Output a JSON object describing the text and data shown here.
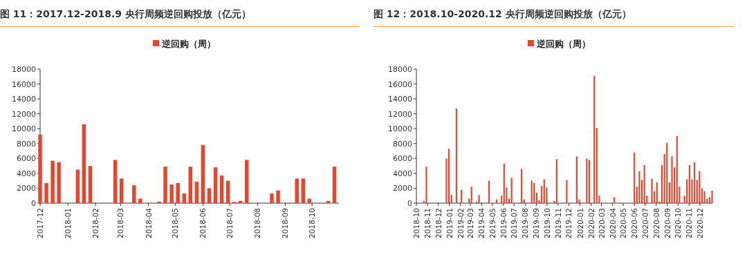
{
  "chart_data": [
    {
      "type": "bar",
      "title": "图 11：2017.12-2018.9 央行周频逆回购投放（亿元）",
      "legend": "top",
      "series": [
        {
          "name": "逆回购（周）",
          "color": "#e8452c",
          "x": [
            "2017-12-01",
            "2017-12-08",
            "2017-12-15",
            "2017-12-22",
            "2018-01-12",
            "2018-01-19",
            "2018-01-26",
            "2018-02-23",
            "2018-03-02",
            "2018-03-16",
            "2018-03-23",
            "2018-04-13",
            "2018-04-20",
            "2018-04-27",
            "2018-05-04",
            "2018-05-11",
            "2018-05-18",
            "2018-05-25",
            "2018-06-01",
            "2018-06-08",
            "2018-06-15",
            "2018-06-22",
            "2018-06-29",
            "2018-07-06",
            "2018-07-13",
            "2018-07-20",
            "2018-08-17",
            "2018-08-24",
            "2018-09-14",
            "2018-09-21",
            "2018-09-28",
            "2018-10-19",
            "2018-10-26"
          ],
          "values": [
            9200,
            2700,
            5700,
            5500,
            4500,
            10600,
            5000,
            5800,
            3300,
            2400,
            600,
            200,
            4900,
            2500,
            2700,
            1300,
            4900,
            2900,
            7800,
            2000,
            4800,
            3700,
            3000,
            150,
            300,
            5800,
            1300,
            1700,
            3300,
            3300,
            600,
            300,
            4900
          ]
        }
      ],
      "xlim": [
        "2017-12-01",
        "2018-10-31"
      ],
      "xticks": [
        "2017-12",
        "2018-01",
        "2018-02",
        "2018-03",
        "2018-04",
        "2018-05",
        "2018-06",
        "2018-07",
        "2018-08",
        "2018-09",
        "2018-10"
      ],
      "ylim": [
        0,
        18000
      ],
      "yticks": [
        0,
        2000,
        4000,
        6000,
        8000,
        10000,
        12000,
        14000,
        16000,
        18000
      ]
    },
    {
      "type": "bar",
      "title": "图 12：2018.10-2020.12 央行周频逆回购投放（亿元）",
      "legend": "top",
      "series": [
        {
          "name": "逆回购（周）",
          "color": "#e8452c",
          "x": [
            "2018-10-22",
            "2018-10-29",
            "2018-12-24",
            "2018-12-31",
            "2019-01-07",
            "2019-01-21",
            "2019-02-04",
            "2019-02-25",
            "2019-03-04",
            "2019-03-18",
            "2019-03-25",
            "2019-04-22",
            "2019-05-13",
            "2019-05-27",
            "2019-06-03",
            "2019-06-10",
            "2019-06-17",
            "2019-06-24",
            "2019-07-22",
            "2019-07-29",
            "2019-08-19",
            "2019-08-26",
            "2019-09-02",
            "2019-09-09",
            "2019-09-16",
            "2019-09-23",
            "2019-09-30",
            "2019-10-21",
            "2019-10-28",
            "2019-11-25",
            "2019-12-23",
            "2019-12-30",
            "2020-01-20",
            "2020-01-27",
            "2020-02-10",
            "2020-02-17",
            "2020-02-24",
            "2020-04-06",
            "2020-06-01",
            "2020-06-08",
            "2020-06-15",
            "2020-06-22",
            "2020-06-29",
            "2020-07-06",
            "2020-07-20",
            "2020-07-27",
            "2020-08-03",
            "2020-08-10",
            "2020-08-17",
            "2020-08-24",
            "2020-08-31",
            "2020-09-07",
            "2020-09-14",
            "2020-09-21",
            "2020-09-28",
            "2020-10-05",
            "2020-10-19",
            "2020-10-26",
            "2020-11-02",
            "2020-11-09",
            "2020-11-16",
            "2020-11-23",
            "2020-11-30",
            "2020-12-07",
            "2020-12-14",
            "2020-12-21",
            "2020-12-28",
            "2021-01-04"
          ],
          "values": [
            300,
            4900,
            6000,
            7300,
            1100,
            12700,
            1800,
            600,
            2200,
            200,
            1100,
            3000,
            500,
            1000,
            5300,
            2100,
            600,
            3400,
            4600,
            500,
            3000,
            2700,
            1400,
            400,
            2300,
            3200,
            2100,
            300,
            5900,
            3100,
            6300,
            500,
            6000,
            5800,
            17100,
            10100,
            1000,
            800,
            6800,
            2200,
            4300,
            3100,
            5100,
            1000,
            3300,
            1600,
            2800,
            200,
            5100,
            6600,
            8100,
            2800,
            6300,
            4800,
            9000,
            2200,
            1000,
            3200,
            5100,
            3200,
            5500,
            3100,
            4300,
            2000,
            1600,
            600,
            800,
            1700
          ]
        }
      ],
      "xlim": [
        "2018-10-01",
        "2021-01-05"
      ],
      "xticks": [
        "2018-10",
        "2018-11",
        "2018-12",
        "2019-01",
        "2019-02",
        "2019-03",
        "2019-04",
        "2019-05",
        "2019-06",
        "2019-07",
        "2019-08",
        "2019-09",
        "2019-10",
        "2019-11",
        "2019-12",
        "2020-01",
        "2020-02",
        "2020-03",
        "2020-04",
        "2020-05",
        "2020-06",
        "2020-07",
        "2020-08",
        "2020-09",
        "2020-10",
        "2020-11",
        "2020-12"
      ],
      "ylim": [
        0,
        18000
      ],
      "yticks": [
        0,
        2000,
        4000,
        6000,
        8000,
        10000,
        12000,
        14000,
        16000,
        18000
      ]
    }
  ]
}
